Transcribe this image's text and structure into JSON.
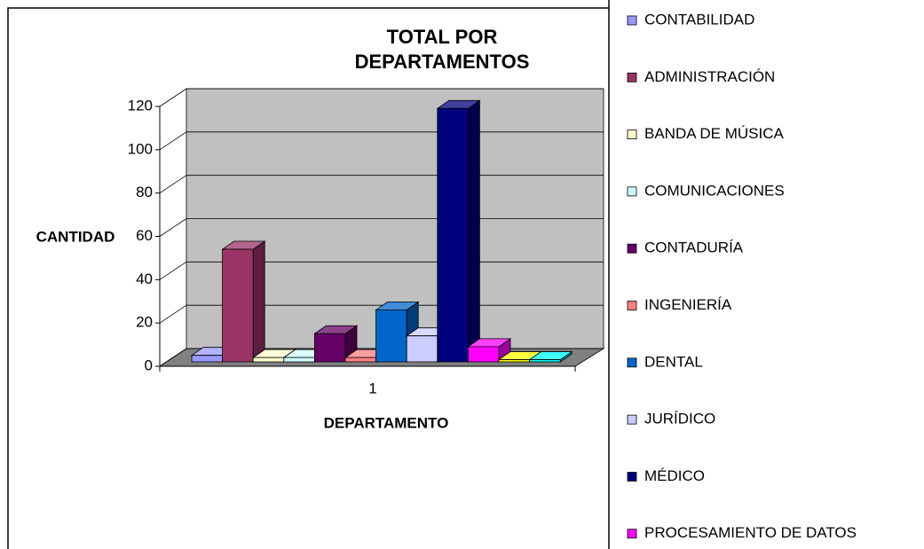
{
  "chart_data": {
    "type": "bar3d",
    "title": "TOTAL POR DEPARTAMENTOS",
    "xlabel": "DEPARTAMENTO",
    "ylabel": "CANTIDAD",
    "categories": [
      "1"
    ],
    "ylim": [
      0,
      120
    ],
    "yticks": [
      0,
      20,
      40,
      60,
      80,
      100,
      120
    ],
    "grid": true,
    "legend": "right",
    "series": [
      {
        "name": "CONTABILIDAD",
        "color": "#9999ff",
        "values": [
          3
        ]
      },
      {
        "name": "ADMINISTRACIÓN",
        "color": "#993366",
        "values": [
          52
        ]
      },
      {
        "name": "BANDA DE MÚSICA",
        "color": "#ffffcc",
        "values": [
          2
        ]
      },
      {
        "name": "COMUNICACIONES",
        "color": "#ccffff",
        "values": [
          2
        ]
      },
      {
        "name": "CONTADURÍA",
        "color": "#660066",
        "values": [
          13
        ]
      },
      {
        "name": "INGENIERÍA",
        "color": "#ff8080",
        "values": [
          2
        ]
      },
      {
        "name": "DENTAL",
        "color": "#0066cc",
        "values": [
          24
        ]
      },
      {
        "name": "JURÍDICO",
        "color": "#ccccff",
        "values": [
          12
        ]
      },
      {
        "name": "MÉDICO",
        "color": "#000080",
        "values": [
          117
        ]
      },
      {
        "name": "PROCESAMIENTO DE DATOS",
        "color": "#ff00ff",
        "values": [
          7
        ]
      },
      {
        "name": null,
        "color": "#ffff00",
        "values": [
          1
        ]
      },
      {
        "name": null,
        "color": "#00ffff",
        "values": [
          1
        ]
      }
    ]
  }
}
